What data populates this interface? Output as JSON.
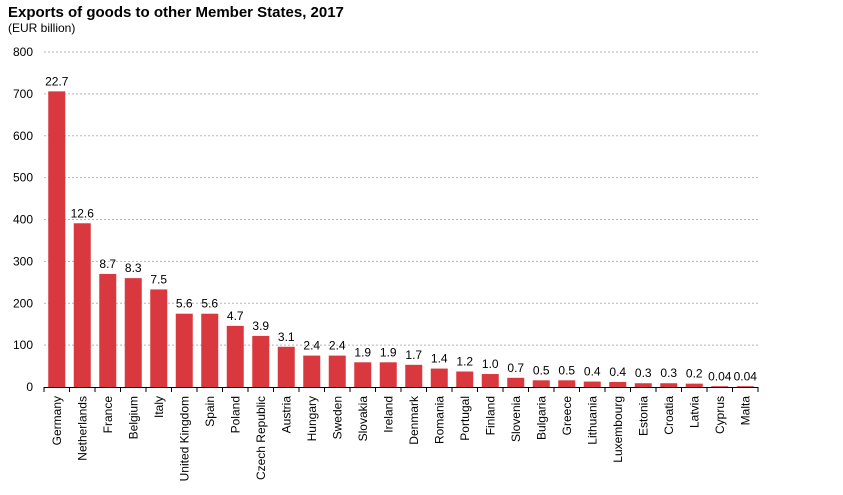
{
  "chart_data": {
    "type": "bar",
    "title": "Exports of goods to other Member States, 2017",
    "subtitle": "(EUR billion)",
    "xlabel": "",
    "ylabel": "",
    "ylim": [
      0,
      800
    ],
    "yticks": [
      0,
      100,
      200,
      300,
      400,
      500,
      600,
      700,
      800
    ],
    "grid": true,
    "legend": "none",
    "bar_color": "#d9383f",
    "categories": [
      "Germany",
      "Netherlands",
      "France",
      "Belgium",
      "Italy",
      "United Kingdom",
      "Spain",
      "Poland",
      "Czech Republic",
      "Austria",
      "Hungary",
      "Sweden",
      "Slovakia",
      "Ireland",
      "Denmark",
      "Romania",
      "Portugal",
      "Finland",
      "Slovenia",
      "Bulgaria",
      "Greece",
      "Lithuania",
      "Luxembourg",
      "Estonia",
      "Croatia",
      "Latvia",
      "Cyprus",
      "Malta"
    ],
    "values": [
      706,
      391,
      270,
      260,
      233,
      175,
      175,
      146,
      122,
      96,
      75,
      75,
      59,
      59,
      53,
      44,
      37,
      31,
      22,
      16,
      16,
      13,
      12,
      9,
      9,
      8,
      1,
      1
    ],
    "data_labels": [
      "22.7",
      "12.6",
      "8.7",
      "8.3",
      "7.5",
      "5.6",
      "5.6",
      "4.7",
      "3.9",
      "3.1",
      "2.4",
      "2.4",
      "1.9",
      "1.9",
      "1.7",
      "1.4",
      "1.2",
      "1.0",
      "0.7",
      "0.5",
      "0.5",
      "0.4",
      "0.4",
      "0.3",
      "0.3",
      "0.2",
      "0.04",
      "0.04"
    ]
  }
}
